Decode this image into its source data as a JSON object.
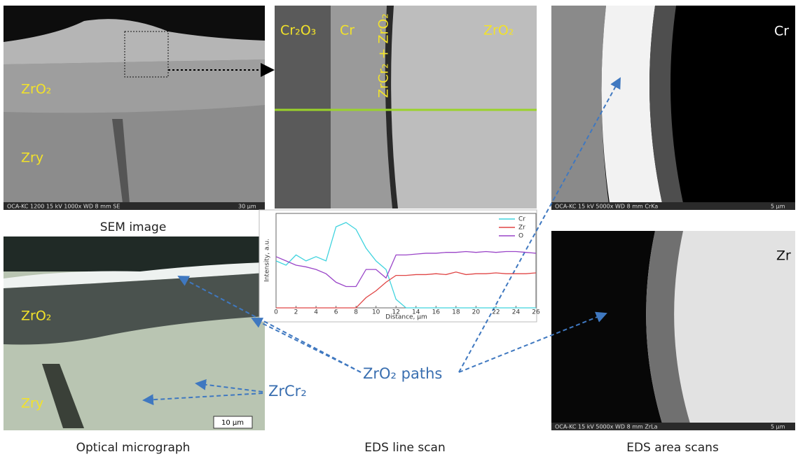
{
  "sem": {
    "caption": "SEM image",
    "labels": [
      "ZrO₂",
      "Zry"
    ],
    "info": "OCA-KC 1200   15 kV   1000x   WD 8 mm   SE",
    "scale": "30 µm"
  },
  "optical": {
    "caption": "Optical micrograph",
    "labels": [
      "ZrO₂",
      "Zry"
    ],
    "scale": "10 µm"
  },
  "eds_image": {
    "labels": [
      "Cr₂O₃",
      "Cr",
      "ZrCr₂ + ZrO₂",
      "ZrO₂"
    ]
  },
  "line_scan": {
    "caption": "EDS line scan",
    "type": "line",
    "xlabel": "Distance, µm",
    "ylabel": "Intensity, a.u.",
    "xlim": [
      0,
      26
    ],
    "ylim": [
      0,
      1
    ],
    "xticks": [
      0,
      2,
      4,
      6,
      8,
      10,
      12,
      14,
      16,
      18,
      20,
      22,
      24,
      26
    ],
    "x": [
      0,
      1,
      2,
      3,
      4,
      5,
      6,
      7,
      8,
      9,
      10,
      11,
      12,
      13,
      14,
      15,
      16,
      17,
      18,
      19,
      20,
      21,
      22,
      23,
      24,
      25,
      26
    ],
    "series": [
      {
        "name": "Cr",
        "color": "#3fd3de",
        "values": [
          0.55,
          0.5,
          0.62,
          0.55,
          0.6,
          0.55,
          0.95,
          1.0,
          0.92,
          0.7,
          0.55,
          0.45,
          0.1,
          0,
          0,
          0,
          0,
          0,
          0,
          0,
          0,
          0,
          0,
          0,
          0,
          0,
          0
        ]
      },
      {
        "name": "Zr",
        "color": "#e04545",
        "values": [
          0,
          0,
          0,
          0,
          0,
          0,
          0,
          0,
          0,
          0.12,
          0.2,
          0.3,
          0.38,
          0.38,
          0.39,
          0.39,
          0.4,
          0.39,
          0.42,
          0.39,
          0.4,
          0.4,
          0.41,
          0.4,
          0.4,
          0.4,
          0.41
        ]
      },
      {
        "name": "O",
        "color": "#9a45c8",
        "values": [
          0.6,
          0.55,
          0.5,
          0.48,
          0.45,
          0.4,
          0.3,
          0.25,
          0.25,
          0.45,
          0.45,
          0.35,
          0.62,
          0.62,
          0.63,
          0.64,
          0.64,
          0.65,
          0.65,
          0.66,
          0.65,
          0.66,
          0.65,
          0.66,
          0.66,
          0.65,
          0.64
        ]
      }
    ]
  },
  "eds_area": {
    "caption": "EDS area scans",
    "cr": {
      "label": "Cr",
      "info": "OCA-KC   15 kV   5000x   WD 8 mm   CrKa",
      "scale": "5 µm"
    },
    "zr": {
      "label": "Zr",
      "info": "OCA-KC   15 kV   5000x   WD 8 mm   ZrLa",
      "scale": "5 µm"
    }
  },
  "annotations": {
    "paths": "ZrO₂ paths",
    "zrcr2": "ZrCr₂"
  }
}
